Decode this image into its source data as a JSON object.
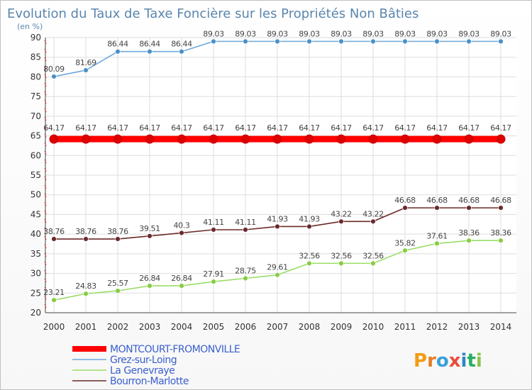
{
  "chart_data": {
    "type": "line",
    "title": "Evolution du Taux de Taxe Foncière sur les Propriétés Non Bâties",
    "subtitle": "(en %)",
    "x": [
      "2000",
      "2001",
      "2002",
      "2003",
      "2004",
      "2005",
      "2006",
      "2007",
      "2008",
      "2009",
      "2010",
      "2011",
      "2012",
      "2013",
      "2014"
    ],
    "ylim": [
      20,
      90
    ],
    "yticks": [
      20,
      25,
      30,
      35,
      40,
      45,
      50,
      55,
      60,
      65,
      70,
      75,
      80,
      85,
      90
    ],
    "grid": true,
    "legend_position": "bottom-left",
    "series": [
      {
        "name": "Grez-sur-Loing",
        "color": "#6fa8dc",
        "dot": "#4a90c8",
        "values": [
          80.09,
          81.69,
          86.44,
          86.44,
          86.44,
          89.03,
          89.03,
          89.03,
          89.03,
          89.03,
          89.03,
          89.03,
          89.03,
          89.03,
          89.03
        ],
        "labels": [
          "80.09",
          "81.69",
          "86.44",
          "86.44",
          "86.44",
          "89.03",
          "89.03",
          "89.03",
          "89.03",
          "89.03",
          "89.03",
          "89.03",
          "89.03",
          "89.03",
          "89.03"
        ]
      },
      {
        "name": "MONTCOURT-FROMONVILLE",
        "color": "#ff0000",
        "dot": "#dd0000",
        "thick": true,
        "values": [
          64.17,
          64.17,
          64.17,
          64.17,
          64.17,
          64.17,
          64.17,
          64.17,
          64.17,
          64.17,
          64.17,
          64.17,
          64.17,
          64.17,
          64.17
        ],
        "labels": [
          "64.17",
          "64.17",
          "64.17",
          "64.17",
          "64.17",
          "64.17",
          "64.17",
          "64.17",
          "64.17",
          "64.17",
          "64.17",
          "64.17",
          "64.17",
          "64.17",
          "64.17"
        ]
      },
      {
        "name": "Bourron-Marlotte",
        "color": "#6b2a2a",
        "dot": "#6b2a2a",
        "values": [
          38.76,
          38.76,
          38.76,
          39.51,
          40.3,
          41.11,
          41.11,
          41.93,
          41.93,
          43.22,
          43.22,
          46.68,
          46.68,
          46.68,
          46.68
        ],
        "labels": [
          "38.76",
          "38.76",
          "38.76",
          "39.51",
          "40.3",
          "41.11",
          "41.11",
          "41.93",
          "41.93",
          "43.22",
          "43.22",
          "46.68",
          "46.68",
          "46.68",
          "46.68"
        ]
      },
      {
        "name": "La Genevraye",
        "color": "#99dd66",
        "dot": "#88cc44",
        "values": [
          23.21,
          24.83,
          25.57,
          26.84,
          26.84,
          27.91,
          28.75,
          29.61,
          32.56,
          32.56,
          32.56,
          35.82,
          37.61,
          38.36,
          38.36
        ],
        "labels": [
          "23.21",
          "24.83",
          "25.57",
          "26.84",
          "26.84",
          "27.91",
          "28.75",
          "29.61",
          "32.56",
          "32.56",
          "32.56",
          "35.82",
          "37.61",
          "38.36",
          "38.36"
        ]
      }
    ]
  },
  "legend": [
    {
      "name": "MONTCOURT-FROMONVILLE",
      "color": "#ff0000",
      "text_color": "#3a5fcd",
      "thick": true
    },
    {
      "name": "Grez-sur-Loing",
      "color": "#6fa8dc",
      "text_color": "#3a5fcd"
    },
    {
      "name": "La Genevraye",
      "color": "#99dd66",
      "text_color": "#3a5fcd"
    },
    {
      "name": "Bourron-Marlotte",
      "color": "#6b2a2a",
      "text_color": "#3a5fcd"
    }
  ],
  "logo": {
    "text": "Proxiti"
  }
}
